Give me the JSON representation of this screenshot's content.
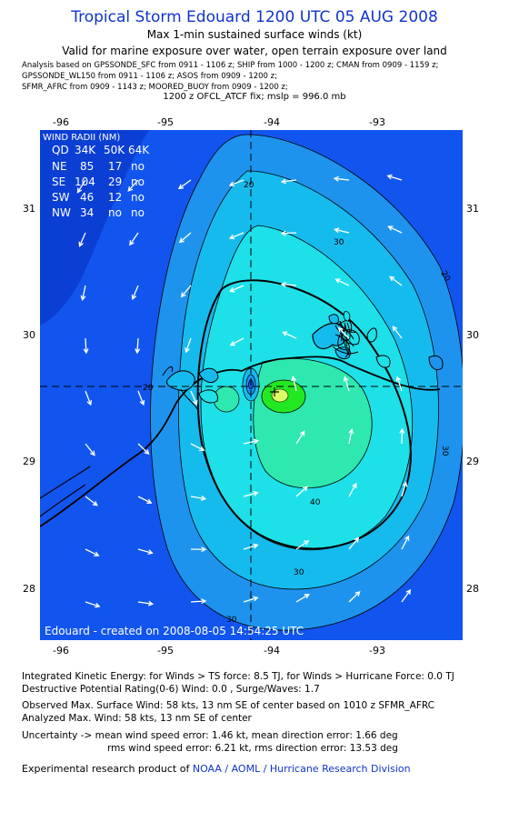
{
  "header": {
    "title": "Tropical Storm Edouard 1200 UTC 05 AUG 2008",
    "subtitle1": "Max 1-min sustained surface winds (kt)",
    "subtitle2": "Valid for marine exposure over water, open terrain exposure over land",
    "analysis_lines": [
      "Analysis based on  GPSSONDE_SFC from 0911 - 1106 z;  SHIP from 1000 - 1200 z;  CMAN from 0909 - 1159 z;",
      "GPSSONDE_WL150 from 0911 - 1106 z;  ASOS from 0909 - 1200 z;",
      "SFMR_AFRC from 0909 - 1143 z;  MOORED_BUOY from 0909 - 1200 z;"
    ],
    "fix_line": "1200 z OFCL_ATCF fix; mslp = 996.0 mb"
  },
  "axes": {
    "lon_ticks": [
      "-96",
      "-95",
      "-94",
      "-93"
    ],
    "lat_ticks": [
      "31",
      "30",
      "29",
      "28"
    ]
  },
  "wind_radii": {
    "title": "WIND RADII (NM)",
    "header": [
      "QD",
      "34K",
      "50K",
      "64K"
    ],
    "rows": [
      [
        "NE",
        "85",
        "17",
        "no"
      ],
      [
        "SE",
        "104",
        "29",
        "no"
      ],
      [
        "SW",
        "46",
        "12",
        "no"
      ],
      [
        "NW",
        "34",
        "no",
        "no"
      ]
    ]
  },
  "contour_labels": [
    "20",
    "20",
    "20",
    "30",
    "30",
    "30",
    "30",
    "40"
  ],
  "map_credit": "Edouard - created on 2008-08-05 14:54:25 UTC",
  "colors": {
    "title": "#1133cc",
    "band_lt20": "#1155ee",
    "band_20_30": "#1e93ee",
    "band_30_40": "#16bbee",
    "band_40_50": "#1ee0e8",
    "band_50_58": "#2ee8b0",
    "band_max": "#22e822"
  },
  "footer": {
    "ike": "Integrated Kinetic Energy:  for Winds > TS force: 8.5 TJ,  for Winds > Hurricane Force: 0.0 TJ",
    "dpr": "Destructive Potential Rating(0-6)   Wind: 0.0 , Surge/Waves: 1.7",
    "obs_max": "Observed Max. Surface Wind: 58 kts, 13 nm SE of center based on 1010 z SFMR_AFRC",
    "ana_max": "Analyzed Max. Wind: 58 kts, 13 nm SE of center",
    "unc1": "Uncertainty -> mean wind speed error: 1.46 kt,   mean direction error: 1.66 deg",
    "unc2": "rms wind speed error: 6.21 kt,   rms direction error: 13.53 deg",
    "credit_prefix": "Experimental research product of",
    "credit_link": "NOAA / AOML / Hurricane Research Division"
  }
}
